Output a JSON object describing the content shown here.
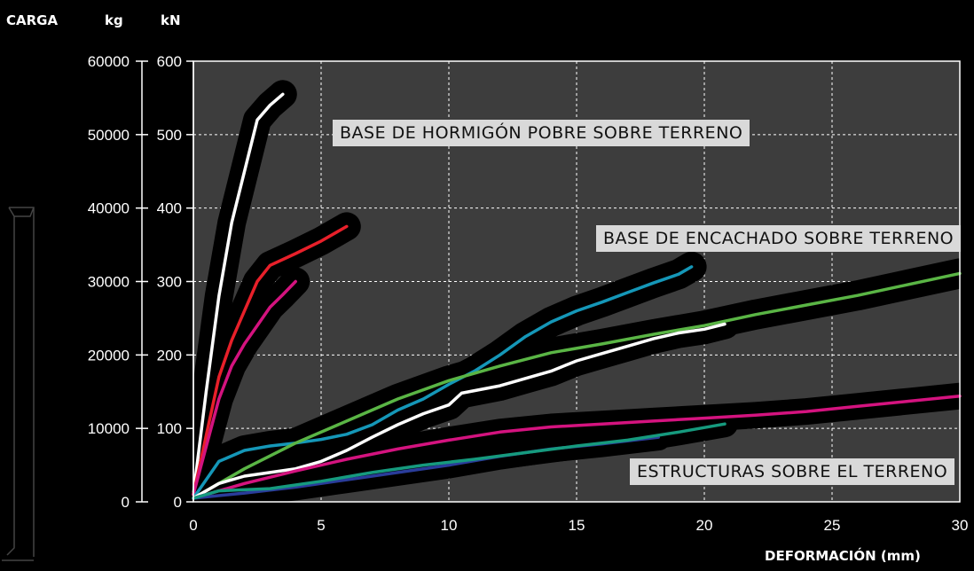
{
  "header": {
    "carga": "CARGA",
    "kg": "kg",
    "kn": "kN"
  },
  "axes": {
    "xlabel": "DEFORMACIÓN (mm)",
    "x_ticks": [
      "0",
      "5",
      "10",
      "15",
      "20",
      "25",
      "30"
    ],
    "y_kg_ticks": [
      "0",
      "10000",
      "20000",
      "30000",
      "40000",
      "50000",
      "60000"
    ],
    "y_kn_ticks": [
      "0",
      "100",
      "200",
      "300",
      "400",
      "500",
      "600"
    ]
  },
  "annotations": {
    "hormigon": "BASE DE HORMIGÓN POBRE SOBRE TERRENO",
    "encachado": "BASE DE ENCACHADO SOBRE TERRENO",
    "estructuras": "ESTRUCTURAS SOBRE EL TERRENO"
  },
  "colors": {
    "plot_bg": "#3d3d3d",
    "grid": "#ffffff",
    "band": "#000000",
    "label_bg": "#d9d9d9",
    "white": "#ffffff",
    "red": "#e8202a",
    "magenta": "#d4137f",
    "cyan": "#1597b8",
    "green": "#5ab545",
    "blue": "#2a3c9a",
    "teal": "#169a7e"
  },
  "chart_data": {
    "type": "line",
    "xlabel": "DEFORMACIÓN (mm)",
    "ylabel": "CARGA kg / kN",
    "xlim": [
      0,
      30
    ],
    "ylim": [
      0,
      600
    ],
    "grid": true,
    "groups": [
      {
        "name": "BASE DE HORMIGÓN POBRE SOBRE TERRENO",
        "series": [
          {
            "color": "white",
            "points": [
              [
                0,
                10
              ],
              [
                0.5,
                150
              ],
              [
                1,
                280
              ],
              [
                1.5,
                380
              ],
              [
                2,
                450
              ],
              [
                2.5,
                520
              ],
              [
                3,
                540
              ],
              [
                3.5,
                555
              ]
            ]
          },
          {
            "color": "red",
            "points": [
              [
                0,
                10
              ],
              [
                0.5,
                90
              ],
              [
                1,
                170
              ],
              [
                1.5,
                220
              ],
              [
                2,
                260
              ],
              [
                2.5,
                300
              ],
              [
                3,
                322
              ],
              [
                4,
                338
              ],
              [
                5,
                355
              ],
              [
                6,
                375
              ]
            ]
          },
          {
            "color": "magenta",
            "points": [
              [
                0,
                10
              ],
              [
                0.5,
                75
              ],
              [
                1,
                140
              ],
              [
                1.5,
                185
              ],
              [
                2,
                215
              ],
              [
                2.5,
                240
              ],
              [
                3,
                265
              ],
              [
                3.5,
                282
              ],
              [
                4,
                300
              ]
            ]
          }
        ]
      },
      {
        "name": "BASE DE ENCACHADO SOBRE TERRENO",
        "series": [
          {
            "color": "cyan",
            "points": [
              [
                0,
                5
              ],
              [
                1,
                55
              ],
              [
                2,
                70
              ],
              [
                3,
                76
              ],
              [
                4,
                80
              ],
              [
                5,
                85
              ],
              [
                6,
                92
              ],
              [
                7,
                105
              ],
              [
                8,
                125
              ],
              [
                9,
                140
              ],
              [
                10,
                160
              ],
              [
                11,
                178
              ],
              [
                12,
                200
              ],
              [
                13,
                225
              ],
              [
                14,
                245
              ],
              [
                15,
                260
              ],
              [
                16,
                272
              ],
              [
                17,
                285
              ],
              [
                18,
                298
              ],
              [
                19,
                310
              ],
              [
                19.5,
                320
              ]
            ]
          },
          {
            "color": "green",
            "points": [
              [
                0,
                5
              ],
              [
                2,
                45
              ],
              [
                4,
                80
              ],
              [
                6,
                110
              ],
              [
                8,
                140
              ],
              [
                10,
                165
              ],
              [
                12,
                185
              ],
              [
                14,
                203
              ],
              [
                16,
                215
              ],
              [
                18,
                228
              ],
              [
                20,
                240
              ],
              [
                22,
                255
              ],
              [
                24,
                268
              ],
              [
                26,
                281
              ],
              [
                28,
                296
              ],
              [
                30,
                311
              ]
            ]
          },
          {
            "color": "white",
            "points": [
              [
                0,
                5
              ],
              [
                1,
                25
              ],
              [
                2,
                35
              ],
              [
                3,
                40
              ],
              [
                4,
                45
              ],
              [
                5,
                55
              ],
              [
                6,
                70
              ],
              [
                7,
                88
              ],
              [
                8,
                105
              ],
              [
                9,
                120
              ],
              [
                10,
                132
              ],
              [
                10.5,
                148
              ],
              [
                12,
                158
              ],
              [
                13,
                168
              ],
              [
                14,
                178
              ],
              [
                15,
                192
              ],
              [
                16,
                202
              ],
              [
                17,
                212
              ],
              [
                18,
                222
              ],
              [
                19,
                230
              ],
              [
                20,
                235
              ],
              [
                20.8,
                242
              ]
            ]
          }
        ]
      },
      {
        "name": "ESTRUCTURAS SOBRE EL TERRENO",
        "series": [
          {
            "color": "magenta",
            "points": [
              [
                0,
                5
              ],
              [
                2,
                25
              ],
              [
                4,
                42
              ],
              [
                6,
                58
              ],
              [
                8,
                72
              ],
              [
                10,
                84
              ],
              [
                12,
                95
              ],
              [
                14,
                102
              ],
              [
                16,
                106
              ],
              [
                18,
                110
              ],
              [
                20,
                114
              ],
              [
                22,
                118
              ],
              [
                24,
                123
              ],
              [
                26,
                130
              ],
              [
                28,
                137
              ],
              [
                30,
                144
              ]
            ]
          },
          {
            "color": "blue",
            "points": [
              [
                0,
                5
              ],
              [
                2,
                12
              ],
              [
                4,
                20
              ],
              [
                6,
                30
              ],
              [
                8,
                40
              ],
              [
                10,
                50
              ],
              [
                12,
                62
              ],
              [
                14,
                72
              ],
              [
                16,
                79
              ],
              [
                18.2,
                88
              ]
            ]
          },
          {
            "color": "teal",
            "points": [
              [
                0,
                5
              ],
              [
                1,
                15
              ],
              [
                3,
                18
              ],
              [
                5,
                28
              ],
              [
                7,
                40
              ],
              [
                9,
                50
              ],
              [
                11,
                58
              ],
              [
                13,
                67
              ],
              [
                15,
                76
              ],
              [
                17,
                84
              ],
              [
                19,
                95
              ],
              [
                20.8,
                106
              ]
            ]
          }
        ]
      }
    ]
  }
}
